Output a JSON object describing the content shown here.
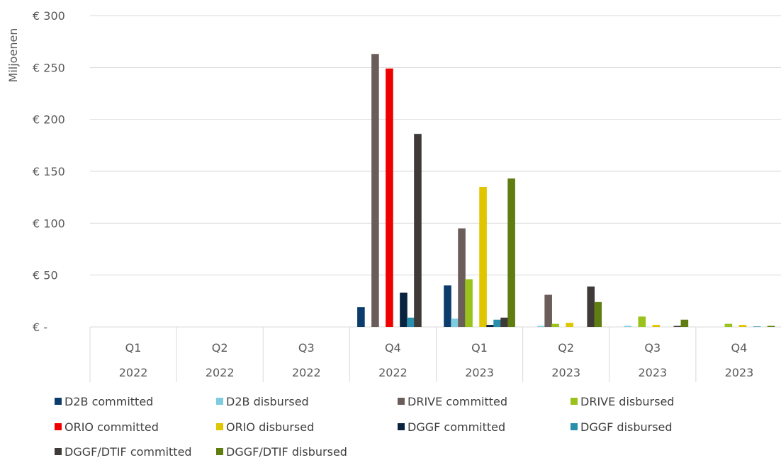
{
  "chart_data": {
    "type": "bar",
    "ylabel": "Miljoenen",
    "ylim": [
      0,
      300
    ],
    "yticks": [
      0,
      50,
      100,
      150,
      200,
      250,
      300
    ],
    "ytick_labels": [
      "€ -",
      "€ 50",
      "€ 100",
      "€ 150",
      "€ 200",
      "€ 250",
      "€ 300"
    ],
    "categories": [
      {
        "quarter": "Q1",
        "year": "2022"
      },
      {
        "quarter": "Q2",
        "year": "2022"
      },
      {
        "quarter": "Q3",
        "year": "2022"
      },
      {
        "quarter": "Q4",
        "year": "2022"
      },
      {
        "quarter": "Q1",
        "year": "2023"
      },
      {
        "quarter": "Q2",
        "year": "2023"
      },
      {
        "quarter": "Q3",
        "year": "2023"
      },
      {
        "quarter": "Q4",
        "year": "2023"
      }
    ],
    "series": [
      {
        "name": "D2B committed",
        "color": "#0b3c6b",
        "values": [
          0,
          0,
          0,
          19,
          40,
          0,
          0,
          0
        ]
      },
      {
        "name": "D2B disbursed",
        "color": "#7fcce0",
        "values": [
          0,
          0,
          0,
          0,
          8,
          1,
          1,
          0
        ]
      },
      {
        "name": "DRIVE committed",
        "color": "#6b5e5a",
        "values": [
          0,
          0,
          0,
          263,
          95,
          31,
          0,
          0
        ]
      },
      {
        "name": "DRIVE disbursed",
        "color": "#99c31c",
        "values": [
          0,
          0,
          0,
          0,
          46,
          3,
          10,
          3
        ]
      },
      {
        "name": "ORIO committed",
        "color": "#ee0000",
        "values": [
          0,
          0,
          0,
          249,
          0,
          0,
          0,
          0
        ]
      },
      {
        "name": "ORIO disbursed",
        "color": "#e0c600",
        "values": [
          0,
          0,
          0,
          0,
          135,
          4,
          2,
          2
        ]
      },
      {
        "name": "DGGF committed",
        "color": "#0a2440",
        "values": [
          0,
          0,
          0,
          33,
          2,
          0,
          0,
          0
        ]
      },
      {
        "name": "DGGF disbursed",
        "color": "#2a8fac",
        "values": [
          0,
          0,
          0,
          9,
          7,
          0,
          0,
          0.5
        ]
      },
      {
        "name": "DGGF/DTIF committed",
        "color": "#3f3938",
        "values": [
          0,
          0,
          0,
          186,
          9,
          39,
          1,
          0
        ]
      },
      {
        "name": "DGGF/DTIF disbursed",
        "color": "#5f7d10",
        "values": [
          0,
          0,
          0,
          0,
          143,
          24,
          7,
          1
        ]
      }
    ],
    "grid": true,
    "legend": "bottom"
  }
}
